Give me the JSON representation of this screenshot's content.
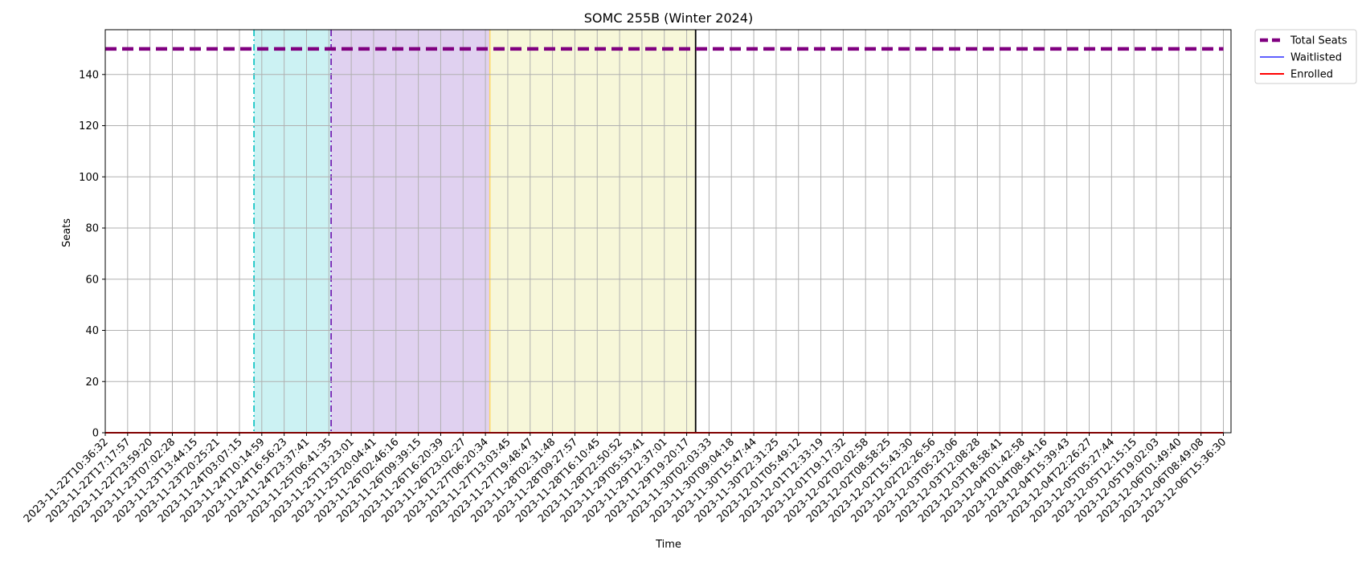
{
  "chart_data": {
    "type": "line",
    "title": "SOMC 255B (Winter 2024)",
    "xlabel": "Time",
    "ylabel": "Seats",
    "ylim": [
      0,
      157.5
    ],
    "yticks": [
      0,
      20,
      40,
      60,
      80,
      100,
      120,
      140
    ],
    "grid": true,
    "legend_position": "outside-top-right",
    "x": [
      "2023-11-22T10:36:32",
      "2023-11-22T17:17:57",
      "2023-11-22T23:59:20",
      "2023-11-23T07:02:28",
      "2023-11-23T13:44:15",
      "2023-11-23T20:25:21",
      "2023-11-24T03:07:15",
      "2023-11-24T10:14:59",
      "2023-11-24T16:56:23",
      "2023-11-24T23:37:41",
      "2023-11-25T06:41:35",
      "2023-11-25T13:23:01",
      "2023-11-25T20:04:41",
      "2023-11-26T02:46:16",
      "2023-11-26T09:39:15",
      "2023-11-26T16:20:39",
      "2023-11-26T23:02:27",
      "2023-11-27T06:20:34",
      "2023-11-27T13:03:45",
      "2023-11-27T19:48:47",
      "2023-11-28T02:31:48",
      "2023-11-28T09:27:57",
      "2023-11-28T16:10:45",
      "2023-11-28T22:50:52",
      "2023-11-29T05:53:41",
      "2023-11-29T12:37:01",
      "2023-11-29T19:20:17",
      "2023-11-30T02:03:33",
      "2023-11-30T09:04:18",
      "2023-11-30T15:47:44",
      "2023-11-30T22:31:25",
      "2023-12-01T05:49:12",
      "2023-12-01T12:33:19",
      "2023-12-01T19:17:32",
      "2023-12-02T02:02:58",
      "2023-12-02T08:58:25",
      "2023-12-02T15:43:30",
      "2023-12-02T22:26:56",
      "2023-12-03T05:23:06",
      "2023-12-03T12:08:28",
      "2023-12-03T18:58:41",
      "2023-12-04T01:42:58",
      "2023-12-04T08:54:16",
      "2023-12-04T15:39:43",
      "2023-12-04T22:26:27",
      "2023-12-05T05:27:44",
      "2023-12-05T12:15:15",
      "2023-12-05T19:02:03",
      "2023-12-06T01:49:40",
      "2023-12-06T08:49:08",
      "2023-12-06T15:36:30"
    ],
    "series": [
      {
        "name": "Total Seats",
        "color": "#800080",
        "style": "dashed",
        "constant": 150
      },
      {
        "name": "Waitlisted",
        "color": "#0000ff",
        "style": "solid",
        "constant": 0
      },
      {
        "name": "Enrolled",
        "color": "#ff0000",
        "style": "solid",
        "constant": 0
      }
    ],
    "shaded_regions": [
      {
        "start_index": 6.65,
        "end_index": 10.1,
        "color": "#00bfc4",
        "opacity": 0.2,
        "start_line_color": "#00bfbf",
        "start_line_style": "dashdot"
      },
      {
        "start_index": 10.1,
        "end_index": 17.2,
        "color": "#9966cc",
        "opacity": 0.3,
        "start_line_color": "#6a0dad",
        "start_line_style": "dashdot"
      },
      {
        "start_index": 17.2,
        "end_index": 26.4,
        "color": "#eeeeaa",
        "opacity": 0.45,
        "start_line_color": "#ffd966",
        "start_line_style": "solid"
      }
    ],
    "vertical_lines": [
      {
        "index": 26.4,
        "color": "#000000",
        "style": "solid"
      }
    ]
  }
}
